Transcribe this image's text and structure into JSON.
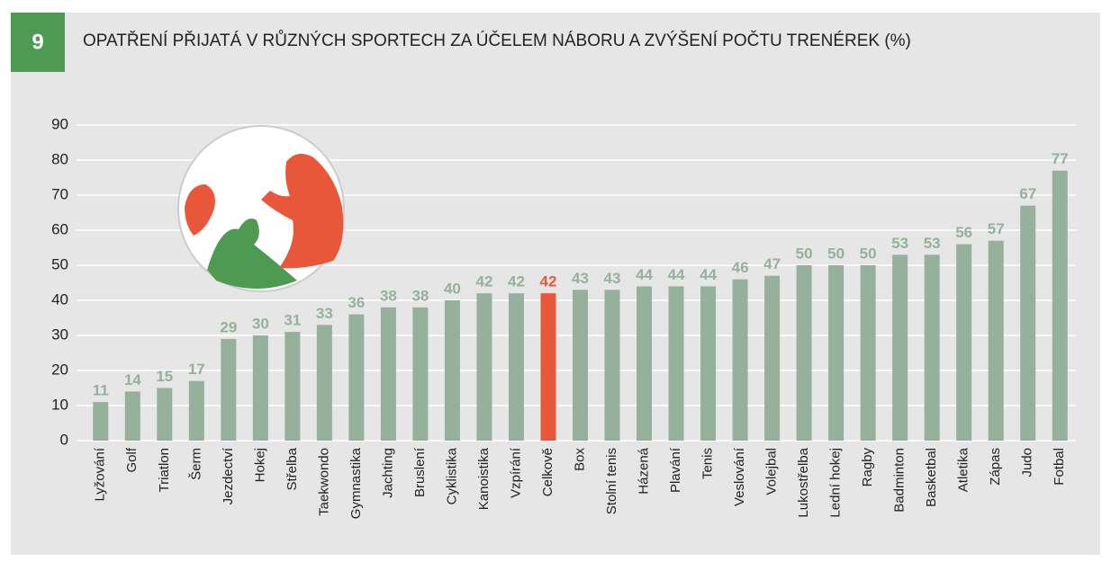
{
  "chart_data": {
    "type": "bar",
    "figure_number": "9",
    "title": "OPATŘENÍ PŘIJATÁ V RŮZNÝCH SPORTECH ZA ÚČELEM NÁBORU A ZVÝŠENÍ POČTU TRENÉREK (%)",
    "categories": [
      "Lyžování",
      "Golf",
      "Triatlon",
      "Šerm",
      "Jezdectví",
      "Hokej",
      "Střelba",
      "Taekwondo",
      "Gymnastika",
      "Jachting",
      "Bruslení",
      "Cyklistika",
      "Kanoistika",
      "Vzpírání",
      "Celkově",
      "Box",
      "Stolní tenis",
      "Házená",
      "Plavání",
      "Tenis",
      "Veslování",
      "Volejbal",
      "Lukostřelba",
      "Lední hokej",
      "Ragby",
      "Badminton",
      "Basketbal",
      "Atletika",
      "Zápas",
      "Judo",
      "Fotbal"
    ],
    "values": [
      11,
      14,
      15,
      17,
      29,
      30,
      31,
      33,
      36,
      38,
      38,
      40,
      42,
      42,
      42,
      43,
      43,
      44,
      44,
      44,
      46,
      47,
      50,
      50,
      50,
      53,
      53,
      56,
      57,
      67,
      77
    ],
    "colors": [
      "#95b09b",
      "#95b09b",
      "#95b09b",
      "#95b09b",
      "#95b09b",
      "#95b09b",
      "#95b09b",
      "#95b09b",
      "#95b09b",
      "#95b09b",
      "#95b09b",
      "#95b09b",
      "#95b09b",
      "#95b09b",
      "#e8573a",
      "#95b09b",
      "#95b09b",
      "#95b09b",
      "#95b09b",
      "#95b09b",
      "#95b09b",
      "#95b09b",
      "#95b09b",
      "#95b09b",
      "#95b09b",
      "#95b09b",
      "#95b09b",
      "#95b09b",
      "#95b09b",
      "#95b09b",
      "#95b09b"
    ],
    "ylim": [
      0,
      90
    ],
    "yticks": [
      0,
      10,
      20,
      30,
      40,
      50,
      60,
      70,
      80,
      90
    ],
    "grid": true
  }
}
